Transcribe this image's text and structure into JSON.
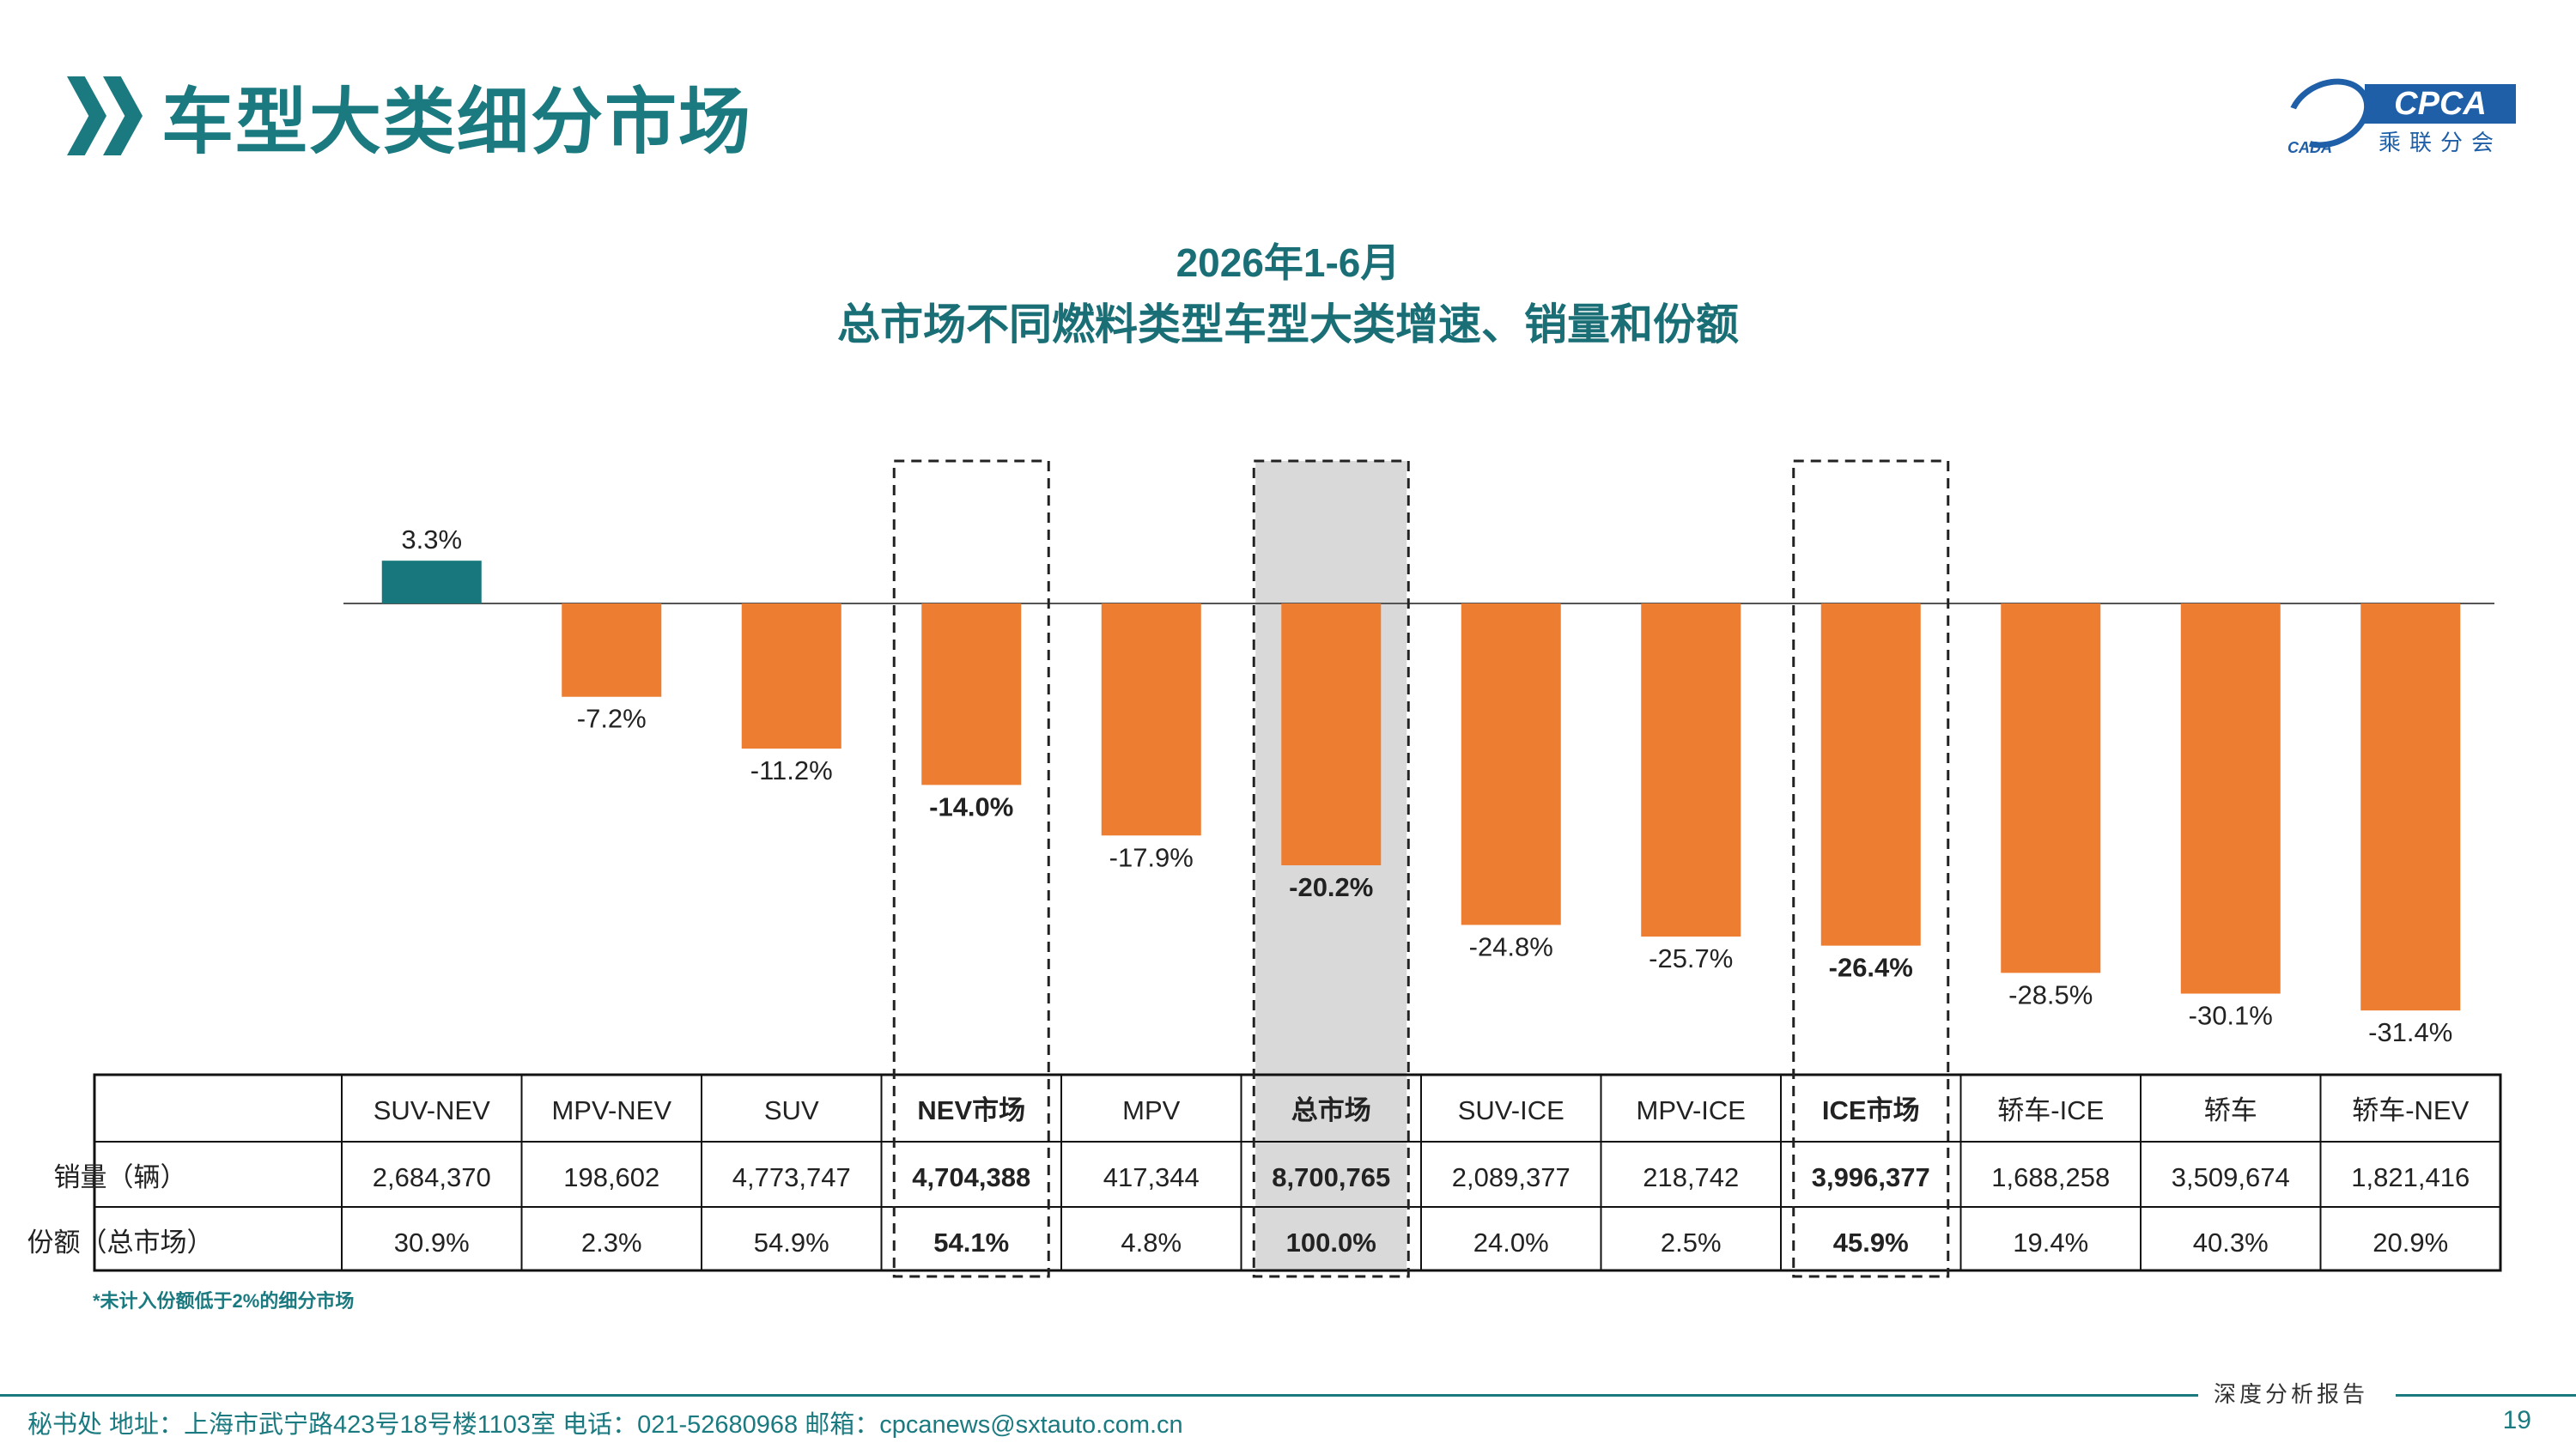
{
  "page": {
    "title": "车型大类细分市场",
    "logo_text": "CPCA",
    "logo_sub": "乘联分会",
    "logo_small": "CADA",
    "footnote": "*未计入份额低于2%的细分市场",
    "footer_tag": "深度分析报告",
    "footer_text": "秘书处   地址：上海市武宁路423号18号楼1103室  电话：021-52680968   邮箱：cpcanews@sxtauto.com.cn",
    "page_number": "19"
  },
  "colors": {
    "positive": "#17777c",
    "negative": "#ed7d31",
    "title": "#1a7a80",
    "highlight_fill": "#d9d9d9"
  },
  "chart_data": {
    "type": "bar",
    "title": "2026年1-6月",
    "subtitle": "总市场不同燃料类型车型大类增速、销量和份额",
    "categories": [
      "SUV-NEV",
      "MPV-NEV",
      "SUV",
      "NEV市场",
      "MPV",
      "总市场",
      "SUV-ICE",
      "MPV-ICE",
      "ICE市场",
      "轿车-ICE",
      "轿车",
      "轿车-NEV"
    ],
    "values": [
      3.3,
      -7.2,
      -11.2,
      -14.0,
      -17.9,
      -20.2,
      -24.8,
      -25.7,
      -26.4,
      -28.5,
      -30.1,
      -31.4
    ],
    "value_labels": [
      "3.3%",
      "-7.2%",
      "-11.2%",
      "-14.0%",
      "-17.9%",
      "-20.2%",
      "-24.8%",
      "-25.7%",
      "-26.4%",
      "-28.5%",
      "-30.1%",
      "-31.4%"
    ],
    "unit": "%",
    "highlighted": [
      "NEV市场",
      "总市场",
      "ICE市场"
    ],
    "shaded": [
      "总市场"
    ],
    "grid": false,
    "table": {
      "rows": [
        {
          "label": "销量（辆）",
          "values": [
            "2,684,370",
            "198,602",
            "4,773,747",
            "4,704,388",
            "417,344",
            "8,700,765",
            "2,089,377",
            "218,742",
            "3,996,377",
            "1,688,258",
            "3,509,674",
            "1,821,416"
          ]
        },
        {
          "label": "份额（总市场）",
          "values": [
            "30.9%",
            "2.3%",
            "54.9%",
            "54.1%",
            "4.8%",
            "100.0%",
            "24.0%",
            "2.5%",
            "45.9%",
            "19.4%",
            "40.3%",
            "20.9%"
          ]
        }
      ]
    }
  }
}
